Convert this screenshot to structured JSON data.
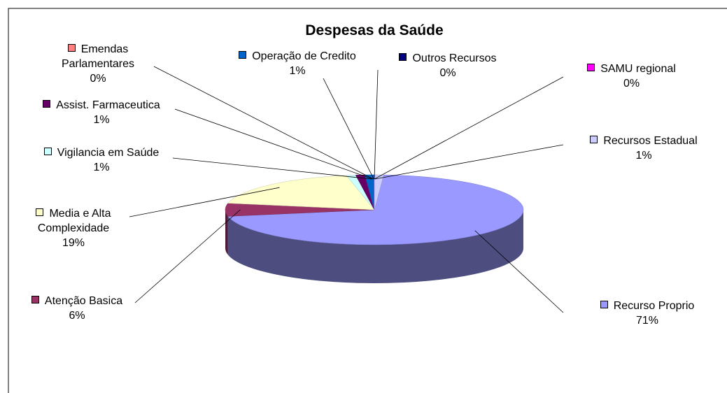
{
  "chart_data": {
    "type": "pie",
    "title": "Despesas da Saúde",
    "categories": [
      "Recurso Proprio",
      "Atenção Basica",
      "Media e Alta Complexidade",
      "Vigilancia em Saúde",
      "Assist. Farmaceutica",
      "Emendas Parlamentares",
      "Operação de Credito",
      "Outros Recursos",
      "SAMU regional",
      "Recursos Estadual"
    ],
    "values": [
      71,
      6,
      19,
      1,
      1,
      0,
      1,
      0,
      0,
      1
    ],
    "value_labels": [
      "71%",
      "6%",
      "19%",
      "1%",
      "1%",
      "0%",
      "1%",
      "0%",
      "0%",
      "1%"
    ],
    "colors": [
      "#9999ff",
      "#993366",
      "#ffffcc",
      "#ccffff",
      "#660066",
      "#ff8080",
      "#0066cc",
      "#000080",
      "#ff00ff",
      "#ccccff"
    ]
  }
}
